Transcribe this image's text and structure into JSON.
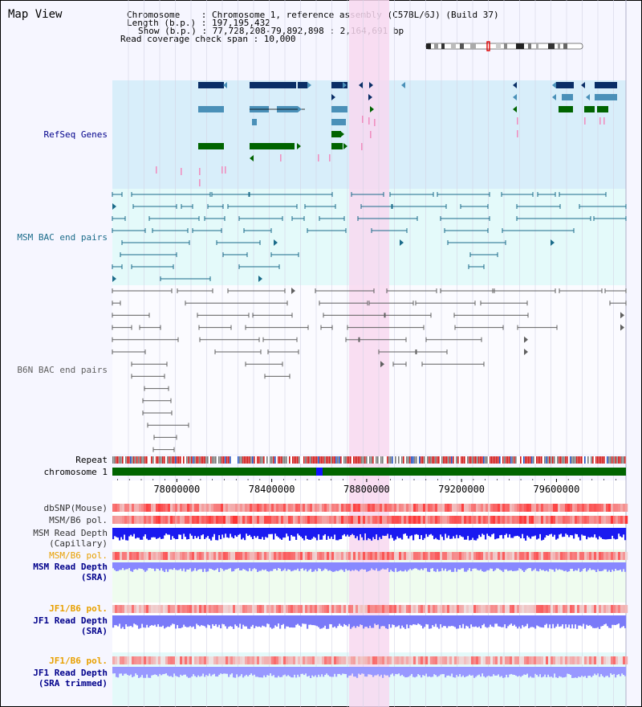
{
  "app_title": "Map View",
  "info": {
    "line1": "Chromosome    : Chromosome 1, reference assembly (C57BL/6J) (Build 37)",
    "line2": "Length (b.p.) : 197,195,432",
    "line3": "Show (b.p.) : 77,728,208-79,892,898 : 2,164,691 bp",
    "line4": "Read coverage check span : 10,000"
  },
  "tracks": {
    "refseq": "RefSeq Genes",
    "msm_bac": "MSM BAC end pairs",
    "b6n_bac": "B6N BAC end pairs",
    "repeat": "Repeat",
    "chromosome": "chromosome 1",
    "dbsnp": "dbSNP(Mouse)",
    "msm_b6_pol_1": "MSM/B6 pol.",
    "msm_read_depth_cap_1": "MSM Read Depth",
    "msm_read_depth_cap_2": "(Capillary)",
    "msm_b6_pol_2": "MSM/B6 pol.",
    "msm_read_depth_sra_1": "MSM Read Depth",
    "msm_read_depth_sra_2": "(SRA)",
    "jf1_b6_pol_1": "JF1/B6 pol.",
    "jf1_read_depth_sra_1": "JF1 Read Depth",
    "jf1_read_depth_sra_2": "(SRA)",
    "jf1_b6_pol_2": "JF1/B6 pol.",
    "jf1_read_depth_trim_1": "JF1 Read Depth",
    "jf1_read_depth_trim_2": "(SRA trimmed)"
  },
  "axis": {
    "ticks": [
      "78000000",
      "78400000",
      "78800000",
      "79200000",
      "79600000"
    ],
    "tick_values": [
      78000000,
      78400000,
      78800000,
      79200000,
      79600000
    ],
    "range": [
      77728208,
      79892898
    ]
  },
  "colors": {
    "refseq_bg": "#d8eefa",
    "bac_bg": "#e4fafa",
    "highlight": "#f8d8f0",
    "gene_dark": "#0a2e66",
    "gene_mid": "#4a90b8",
    "gene_green": "#006400",
    "msm_line": "#1a6b8a",
    "b6n_line": "#606060",
    "depth_blue": "#1a1af0",
    "depth_light": "#8888ff",
    "label_blue": "#00008b",
    "label_teal": "#1a6b8a",
    "label_orange": "#e8a000",
    "chromosome_green": "#006400"
  }
}
